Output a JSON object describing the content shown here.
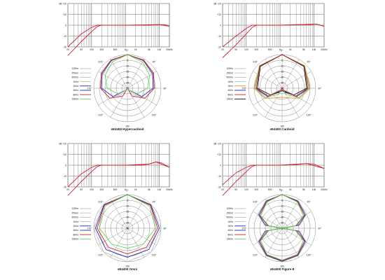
{
  "sheet_label": "Microphone polar pattern and frequency response sheet",
  "colors": {
    "grid": "#666666",
    "curve_red": "#d11f2a",
    "curve_blue": "#1b2aa8",
    "curve_green": "#5fd35a",
    "curve_orange": "#e88a2a",
    "curve_gray": "#bcbcbc",
    "curve_dark": "#111111"
  },
  "response_axis": {
    "ylabels": [
      "dB +20",
      "+10",
      "0",
      "-10",
      "-20"
    ],
    "xlabels": [
      "20",
      "50",
      "100",
      "200",
      "500",
      "1k",
      "2k",
      "5k",
      "10k",
      "20kHz"
    ]
  },
  "polar_axis": {
    "ring_labels": [
      "0",
      "-5",
      "-10",
      "-15",
      "-20",
      "-25",
      "-30"
    ],
    "angle_labels": [
      "0°",
      "45°",
      "90°",
      "135°",
      "180",
      "225°",
      "270°",
      "315°"
    ]
  },
  "panels": [
    {
      "caption": "sE4400 Hypercardioid",
      "legend": [
        "125Hz",
        "250Hz",
        "500Hz",
        "1kHz",
        "2kHz",
        "4kHz",
        "8kHz",
        "16kHz"
      ],
      "response": [
        {
          "color": "curve_red",
          "points": [
            [
              20,
              -20
            ],
            [
              50,
              -8
            ],
            [
              100,
              -2
            ],
            [
              150,
              0
            ],
            [
              1000,
              0
            ],
            [
              5000,
              0
            ],
            [
              10000,
              0.5
            ],
            [
              15000,
              0.5
            ],
            [
              20000,
              -1
            ]
          ]
        },
        {
          "color": "curve_red",
          "points": [
            [
              20,
              -28
            ],
            [
              50,
              -15
            ],
            [
              100,
              -6
            ],
            [
              150,
              -1
            ],
            [
              200,
              0
            ],
            [
              1000,
              0
            ],
            [
              10000,
              0.5
            ],
            [
              20000,
              -1
            ]
          ]
        }
      ],
      "polar": [
        {
          "color": "curve_gray",
          "points": [
            [
              0,
              0
            ],
            [
              30,
              -1
            ],
            [
              60,
              -3
            ],
            [
              90,
              -6
            ],
            [
              120,
              -12
            ],
            [
              150,
              -25
            ],
            [
              180,
              -30
            ]
          ]
        },
        {
          "color": "curve_blue",
          "points": [
            [
              0,
              0
            ],
            [
              30,
              -1.5
            ],
            [
              60,
              -4
            ],
            [
              90,
              -7
            ],
            [
              120,
              -15
            ],
            [
              150,
              -28
            ],
            [
              180,
              -30
            ]
          ]
        },
        {
          "color": "curve_red",
          "points": [
            [
              0,
              0
            ],
            [
              30,
              -1
            ],
            [
              60,
              -3
            ],
            [
              90,
              -6
            ],
            [
              120,
              -12
            ],
            [
              150,
              -22
            ],
            [
              180,
              -30
            ]
          ]
        },
        {
          "color": "curve_green",
          "points": [
            [
              0,
              0
            ],
            [
              30,
              -3
            ],
            [
              60,
              -7
            ],
            [
              90,
              -12
            ],
            [
              120,
              -20
            ],
            [
              150,
              -28
            ],
            [
              180,
              -30
            ]
          ]
        }
      ]
    },
    {
      "caption": "sE4400 Cardioid",
      "legend": [
        "125Hz",
        "250Hz",
        "500Hz",
        "1kHz",
        "2kHz",
        "4kHz",
        "8kHz",
        "16kHz"
      ],
      "response": [
        {
          "color": "curve_red",
          "points": [
            [
              20,
              -20
            ],
            [
              50,
              -10
            ],
            [
              100,
              -3
            ],
            [
              150,
              0
            ],
            [
              1000,
              0
            ],
            [
              8000,
              0.5
            ],
            [
              12000,
              1
            ],
            [
              20000,
              -1
            ]
          ]
        },
        {
          "color": "curve_red",
          "points": [
            [
              20,
              -30
            ],
            [
              50,
              -18
            ],
            [
              100,
              -8
            ],
            [
              150,
              -2
            ],
            [
              200,
              0
            ],
            [
              1000,
              0
            ],
            [
              12000,
              1
            ],
            [
              20000,
              -1
            ]
          ]
        }
      ],
      "polar": [
        {
          "color": "curve_orange",
          "points": [
            [
              0,
              0
            ],
            [
              45,
              -1.5
            ],
            [
              90,
              -5
            ],
            [
              120,
              -12
            ],
            [
              150,
              -20
            ],
            [
              180,
              -22
            ]
          ]
        },
        {
          "color": "curve_blue",
          "points": [
            [
              0,
              0
            ],
            [
              45,
              -2
            ],
            [
              90,
              -6
            ],
            [
              120,
              -15
            ],
            [
              150,
              -27
            ],
            [
              180,
              -30
            ]
          ]
        },
        {
          "color": "curve_dark",
          "points": [
            [
              0,
              0
            ],
            [
              45,
              -2.5
            ],
            [
              90,
              -8
            ],
            [
              120,
              -18
            ],
            [
              150,
              -26
            ],
            [
              180,
              -28
            ]
          ]
        },
        {
          "color": "curve_green",
          "points": [
            [
              0,
              0
            ],
            [
              45,
              -1.5
            ],
            [
              90,
              -6
            ],
            [
              120,
              -13
            ],
            [
              150,
              -24
            ],
            [
              180,
              -30
            ]
          ]
        },
        {
          "color": "curve_red",
          "points": [
            [
              0,
              0
            ],
            [
              45,
              -2
            ],
            [
              90,
              -7
            ],
            [
              120,
              -16
            ],
            [
              150,
              -28
            ],
            [
              180,
              -30
            ]
          ]
        }
      ]
    },
    {
      "caption": "sE4400 Omni",
      "legend": [
        "125Hz",
        "250Hz",
        "500Hz",
        "1kHz",
        "2kHz",
        "4kHz",
        "8kHz",
        "16kHz"
      ],
      "response": [
        {
          "color": "curve_red",
          "points": [
            [
              20,
              -20
            ],
            [
              50,
              -8
            ],
            [
              100,
              -2
            ],
            [
              150,
              0
            ],
            [
              1000,
              0
            ],
            [
              3000,
              0
            ],
            [
              5000,
              1
            ],
            [
              8000,
              3
            ],
            [
              12000,
              2
            ],
            [
              20000,
              -2
            ]
          ]
        },
        {
          "color": "curve_red",
          "points": [
            [
              20,
              -28
            ],
            [
              50,
              -15
            ],
            [
              100,
              -6
            ],
            [
              150,
              -1
            ],
            [
              200,
              0
            ],
            [
              1000,
              0
            ],
            [
              5000,
              1
            ],
            [
              8000,
              3
            ],
            [
              20000,
              -2
            ]
          ]
        }
      ],
      "polar": [
        {
          "color": "curve_gray",
          "points": [
            [
              0,
              0
            ],
            [
              45,
              0
            ],
            [
              90,
              0
            ],
            [
              135,
              0
            ],
            [
              180,
              0
            ]
          ]
        },
        {
          "color": "curve_blue",
          "points": [
            [
              0,
              0
            ],
            [
              45,
              -0.5
            ],
            [
              90,
              -1.5
            ],
            [
              135,
              -3
            ],
            [
              180,
              -4
            ]
          ]
        },
        {
          "color": "curve_red",
          "points": [
            [
              0,
              0
            ],
            [
              45,
              -1
            ],
            [
              90,
              -3
            ],
            [
              135,
              -6
            ],
            [
              180,
              -7
            ]
          ]
        },
        {
          "color": "curve_green",
          "points": [
            [
              0,
              0
            ],
            [
              45,
              -2
            ],
            [
              90,
              -5
            ],
            [
              135,
              -10
            ],
            [
              180,
              -12
            ]
          ]
        }
      ]
    },
    {
      "caption": "sE4400 Figure-8",
      "legend": [
        "125Hz",
        "250Hz",
        "500Hz",
        "1kHz",
        "2kHz",
        "4kHz",
        "8kHz",
        "16kHz"
      ],
      "response": [
        {
          "color": "curve_red",
          "points": [
            [
              20,
              -18
            ],
            [
              50,
              -7
            ],
            [
              100,
              -2
            ],
            [
              150,
              0
            ],
            [
              1000,
              0
            ],
            [
              3000,
              0.5
            ],
            [
              6000,
              1.5
            ],
            [
              10000,
              1
            ],
            [
              20000,
              -3
            ]
          ]
        },
        {
          "color": "curve_red",
          "points": [
            [
              20,
              -28
            ],
            [
              50,
              -15
            ],
            [
              100,
              -6
            ],
            [
              150,
              -1
            ],
            [
              200,
              0
            ],
            [
              1000,
              0
            ],
            [
              6000,
              1.5
            ],
            [
              20000,
              -3
            ]
          ]
        }
      ],
      "polar": [
        {
          "color": "curve_gray",
          "points": [
            [
              0,
              0
            ],
            [
              30,
              -1.5
            ],
            [
              60,
              -5
            ],
            [
              80,
              -14
            ],
            [
              90,
              -30
            ],
            [
              100,
              -14
            ],
            [
              120,
              -5
            ],
            [
              150,
              -1.5
            ],
            [
              180,
              0
            ]
          ]
        },
        {
          "color": "curve_blue",
          "points": [
            [
              0,
              0
            ],
            [
              30,
              -2
            ],
            [
              60,
              -6
            ],
            [
              80,
              -15
            ],
            [
              90,
              -30
            ],
            [
              100,
              -15
            ],
            [
              120,
              -6
            ],
            [
              150,
              -2
            ],
            [
              180,
              -0.5
            ]
          ]
        },
        {
          "color": "curve_red",
          "points": [
            [
              0,
              0
            ],
            [
              30,
              -2.5
            ],
            [
              60,
              -7
            ],
            [
              80,
              -17
            ],
            [
              90,
              -30
            ],
            [
              100,
              -17
            ],
            [
              120,
              -7
            ],
            [
              150,
              -2.5
            ],
            [
              180,
              -1
            ]
          ]
        },
        {
          "color": "curve_green",
          "points": [
            [
              0,
              0
            ],
            [
              30,
              -3
            ],
            [
              60,
              -8
            ],
            [
              80,
              -18
            ],
            [
              90,
              -30
            ],
            [
              100,
              -18
            ],
            [
              120,
              -8
            ],
            [
              150,
              -3
            ],
            [
              180,
              -1.5
            ]
          ]
        }
      ]
    }
  ]
}
